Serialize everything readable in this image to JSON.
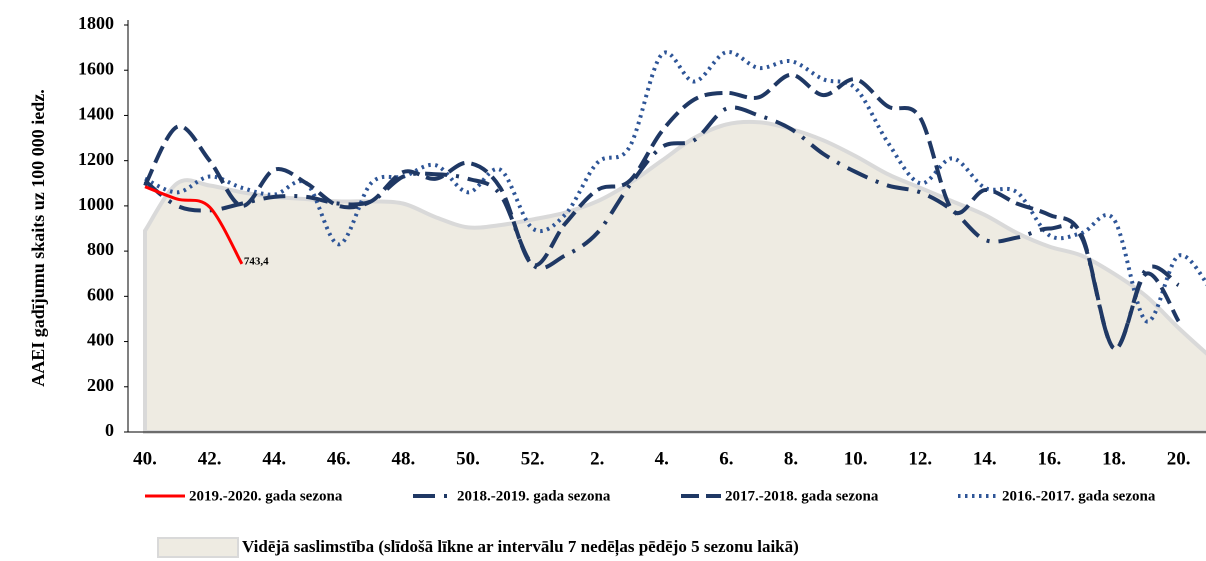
{
  "chart_data": {
    "type": "line",
    "y_label": "AAEI gadījumu skaits uz 100 000 iedz.",
    "categories": [
      "40.",
      null,
      "42.",
      null,
      "44.",
      null,
      "46.",
      null,
      "48.",
      null,
      "50.",
      null,
      "52.",
      null,
      "2.",
      null,
      "4.",
      null,
      "6.",
      null,
      "8.",
      null,
      "10.",
      null,
      "12.",
      null,
      "14.",
      null,
      "16.",
      null,
      "18.",
      null,
      "20.",
      null
    ],
    "ylim": [
      0,
      1800
    ],
    "yticks": [
      0,
      200,
      400,
      600,
      800,
      1000,
      1200,
      1400,
      1600,
      1800
    ],
    "series": [
      {
        "name": "2019.-2020. gada sezona",
        "color": "#ff0000",
        "dash": "solid",
        "values": [
          1085,
          1030,
          995,
          743.4,
          null,
          null,
          null,
          null,
          null,
          null,
          null,
          null,
          null,
          null,
          null,
          null,
          null,
          null,
          null,
          null,
          null,
          null,
          null,
          null,
          null,
          null,
          null,
          null,
          null,
          null,
          null,
          null,
          null,
          null
        ],
        "value_labels": [
          null,
          null,
          null,
          "743,4",
          null,
          null,
          null,
          null,
          null,
          null,
          null,
          null,
          null,
          null,
          null,
          null,
          null,
          null,
          null,
          null,
          null,
          null,
          null,
          null,
          null,
          null,
          null,
          null,
          null,
          null,
          null,
          null,
          null,
          null
        ]
      },
      {
        "name": "2018.-2019. gada sezona",
        "color": "#1f3864",
        "dash": "dash-dot",
        "values": [
          1110,
          1000,
          980,
          1010,
          1040,
          1040,
          1010,
          1020,
          1130,
          1140,
          1120,
          1050,
          740,
          780,
          880,
          1090,
          1260,
          1290,
          1430,
          1400,
          1340,
          1230,
          1150,
          1090,
          1060,
          980,
          850,
          860,
          900,
          860,
          370,
          720,
          650,
          null
        ]
      },
      {
        "name": "2017.-2018. gada sezona",
        "color": "#1f3864",
        "dash": "dash",
        "values": [
          1090,
          1350,
          1200,
          1000,
          1160,
          1100,
          1000,
          1020,
          1150,
          1120,
          1190,
          1080,
          740,
          920,
          1070,
          1110,
          1330,
          1470,
          1500,
          1480,
          1580,
          1490,
          1560,
          1440,
          1390,
          980,
          1070,
          1010,
          960,
          870,
          370,
          700,
          490,
          null
        ]
      },
      {
        "name": "2016.-2017. gada sezona",
        "color": "#2e5597",
        "dash": "dot",
        "values": [
          1120,
          1060,
          1130,
          1080,
          1050,
          1100,
          830,
          1100,
          1130,
          1180,
          1060,
          1160,
          900,
          960,
          1190,
          1260,
          1670,
          1550,
          1680,
          1610,
          1640,
          1560,
          1520,
          1280,
          1100,
          1210,
          1080,
          1060,
          870,
          880,
          940,
          490,
          780,
          630
        ]
      },
      {
        "name": "Vidējā saslimstība (slīdošā līkne ar intervālu 7 nedēļas pēdējo 5 sezonu laikā)",
        "color": "#eeebe2",
        "dash": "area",
        "values": [
          890,
          1100,
          1090,
          1060,
          1040,
          1030,
          1020,
          1020,
          1010,
          950,
          905,
          915,
          940,
          970,
          1020,
          1100,
          1200,
          1300,
          1360,
          1370,
          1340,
          1290,
          1220,
          1140,
          1080,
          1020,
          960,
          880,
          820,
          780,
          700,
          600,
          460,
          330
        ]
      }
    ]
  }
}
